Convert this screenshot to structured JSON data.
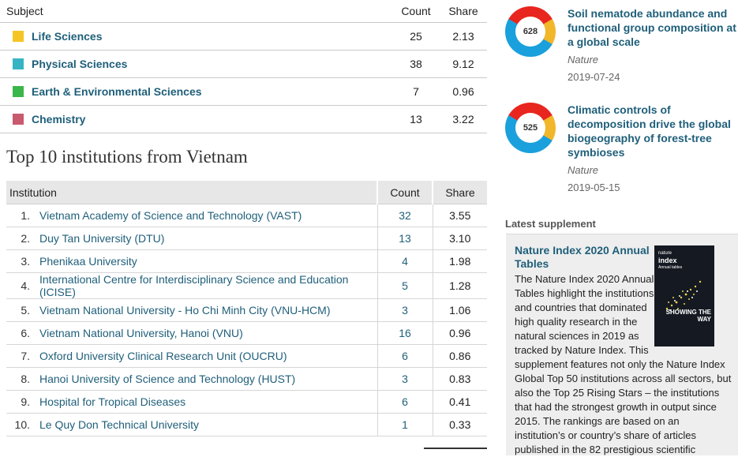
{
  "subjects": {
    "header": {
      "subject": "Subject",
      "count": "Count",
      "share": "Share"
    },
    "rows": [
      {
        "name": "Life Sciences",
        "count": "25",
        "share": "2.13",
        "color": "#f5c526"
      },
      {
        "name": "Physical Sciences",
        "count": "38",
        "share": "9.12",
        "color": "#37b4c4"
      },
      {
        "name": "Earth & Environmental Sciences",
        "count": "7",
        "share": "0.96",
        "color": "#3bb64a"
      },
      {
        "name": "Chemistry",
        "count": "13",
        "share": "3.22",
        "color": "#c85a6e"
      }
    ]
  },
  "institutions": {
    "heading": "Top 10 institutions from Vietnam",
    "header": {
      "institution": "Institution",
      "count": "Count",
      "share": "Share"
    },
    "rows": [
      {
        "rank": "1.",
        "name": "Vietnam Academy of Science and Technology (VAST)",
        "count": "32",
        "share": "3.55"
      },
      {
        "rank": "2.",
        "name": "Duy Tan University (DTU)",
        "count": "13",
        "share": "3.10"
      },
      {
        "rank": "3.",
        "name": "Phenikaa University",
        "count": "4",
        "share": "1.98"
      },
      {
        "rank": "4.",
        "name": "International Centre for Interdisciplinary Science and Education (ICISE)",
        "count": "5",
        "share": "1.28"
      },
      {
        "rank": "5.",
        "name": "Vietnam National University - Ho Chi Minh City (VNU-HCM)",
        "count": "3",
        "share": "1.06"
      },
      {
        "rank": "6.",
        "name": "Vietnam National University, Hanoi (VNU)",
        "count": "16",
        "share": "0.96"
      },
      {
        "rank": "7.",
        "name": "Oxford University Clinical Research Unit (OUCRU)",
        "count": "6",
        "share": "0.86"
      },
      {
        "rank": "8.",
        "name": "Hanoi University of Science and Technology (HUST)",
        "count": "3",
        "share": "0.83"
      },
      {
        "rank": "9.",
        "name": "Hospital for Tropical Diseases",
        "count": "6",
        "share": "0.41"
      },
      {
        "rank": "10.",
        "name": "Le Quy Don Technical University",
        "count": "1",
        "share": "0.33"
      }
    ]
  },
  "articles": [
    {
      "score": "628",
      "title": "Soil nematode abundance and functional group composition at a global scale",
      "journal": "Nature",
      "date": "2019-07-24"
    },
    {
      "score": "525",
      "title": "Climatic controls of decomposition drive the global biogeography of forest-tree symbioses",
      "journal": "Nature",
      "date": "2019-05-15"
    }
  ],
  "supplement": {
    "label": "Latest supplement",
    "title": "Nature Index 2020 Annual Tables",
    "cover_brand": "nature",
    "cover_title": "index",
    "cover_subtitle": "Annual tables",
    "cover_tagline": "SHOWING THE WAY",
    "text": "The Nature Index 2020 Annual Tables highlight the institutions and countries that dominated high quality research in the natural sciences in 2019 as tracked by Nature Index. This supplement features not only the Nature Index Global Top 50 institutions across all sectors, but also the Top 25 Rising Stars – the institutions that had the strongest growth in output since 2015. The rankings are based on an institution’s or country’s share of articles published in the 82 prestigious scientific"
  },
  "colors": {
    "link": "#1f5f7a",
    "header_bg": "#e7e7e7",
    "sidebar_bg": "#eeeeee"
  }
}
